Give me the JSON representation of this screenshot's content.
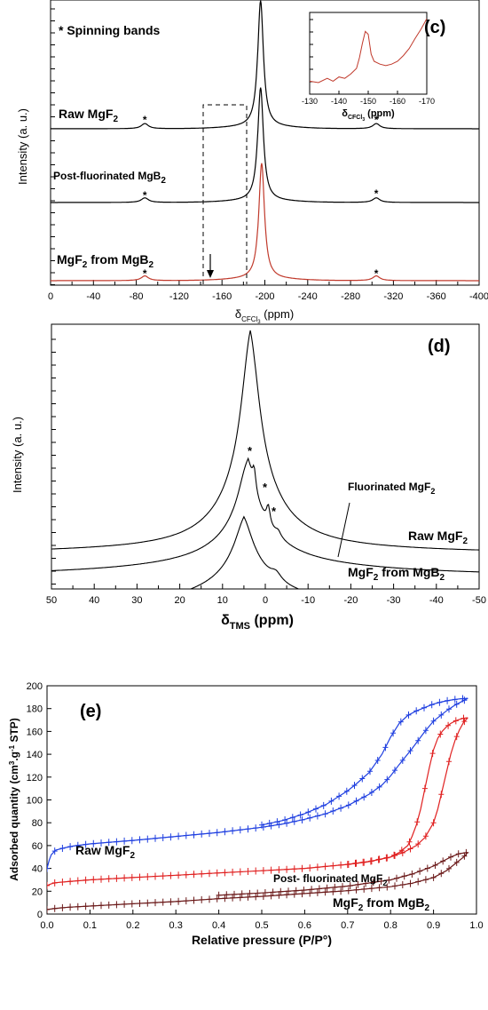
{
  "chart_data": [
    {
      "panel_label": "(c)",
      "type": "line",
      "xlabel": "δCFCl3 (ppm)",
      "ylabel": "Intensity (a. u.)",
      "xlim": [
        0,
        -400
      ],
      "xticks": [
        0,
        -40,
        -80,
        -120,
        -160,
        -200,
        -240,
        -280,
        -320,
        -360,
        -400
      ],
      "note": "* Spinning bands",
      "spinning_band_marker": "*",
      "series": [
        {
          "name": "Raw MgF2",
          "color": "#000000",
          "peaks": [
            {
              "x": -196,
              "rel_height": 1.0
            }
          ],
          "spinning_bands": [
            -88,
            -304
          ]
        },
        {
          "name": "Post-fluorinated MgB2",
          "color": "#000000",
          "peaks": [
            {
              "x": -196,
              "rel_height": 1.0
            }
          ],
          "spinning_bands": [
            -88,
            -304
          ]
        },
        {
          "name": "MgF2 from MgB2",
          "color": "#c0392b",
          "peaks": [
            {
              "x": -197,
              "rel_height": 1.0
            }
          ],
          "spinning_bands": [
            -88,
            -304
          ]
        }
      ],
      "inset": {
        "xlabel": "δCFCl3 (ppm)",
        "xlim": [
          -130,
          -170
        ],
        "xticks": [
          -130,
          -140,
          -150,
          -160,
          -170
        ],
        "color": "#c0392b",
        "x": [
          -130,
          -133,
          -136,
          -138,
          -140,
          -142,
          -144,
          -146,
          -147,
          -148,
          -149,
          -150,
          -151,
          -152,
          -154,
          -156,
          -158,
          -160,
          -162,
          -164,
          -166,
          -168,
          -170
        ],
        "y": [
          0.12,
          0.1,
          0.16,
          0.12,
          0.18,
          0.16,
          0.22,
          0.3,
          0.45,
          0.65,
          0.82,
          0.78,
          0.5,
          0.4,
          0.36,
          0.34,
          0.36,
          0.4,
          0.48,
          0.58,
          0.72,
          0.85,
          1.0
        ]
      }
    },
    {
      "panel_label": "(d)",
      "type": "line",
      "xlabel": "δTMS (ppm)",
      "ylabel": "Intensity (a. u.)",
      "xlim": [
        50,
        -50
      ],
      "xticks": [
        50,
        40,
        30,
        20,
        10,
        0,
        -10,
        -20,
        -30,
        -40,
        -50
      ],
      "spinning_band_marker": "*",
      "series": [
        {
          "name": "Raw MgF2",
          "color": "#000000",
          "peak_x": 3.5,
          "rel_height": 1.0
        },
        {
          "name": "Fluorinated MgF2",
          "color": "#000000",
          "peak_x": 4.0,
          "rel_height": 0.55
        },
        {
          "name": "MgF2 from MgB2",
          "color": "#000000",
          "peak_x": 5.0,
          "rel_height": 0.45
        }
      ]
    },
    {
      "panel_label": "(e)",
      "type": "line",
      "xlabel": "Relative pressure (P/P°)",
      "ylabel": "Adsorbed quantity (cm3.g-1 STP)",
      "xlim": [
        0.0,
        1.0
      ],
      "ylim": [
        0,
        200
      ],
      "xticks": [
        0.0,
        0.1,
        0.2,
        0.3,
        0.4,
        0.5,
        0.6,
        0.7,
        0.8,
        0.9,
        1.0
      ],
      "yticks": [
        0,
        20,
        40,
        60,
        80,
        100,
        120,
        140,
        160,
        180,
        200
      ],
      "series": [
        {
          "name": "Raw MgF2",
          "color": "#1f3fe0",
          "adsorption_x": [
            0.0,
            0.005,
            0.01,
            0.02,
            0.04,
            0.06,
            0.1,
            0.15,
            0.2,
            0.3,
            0.4,
            0.5,
            0.55,
            0.6,
            0.65,
            0.7,
            0.75,
            0.78,
            0.8,
            0.82,
            0.85,
            0.88,
            0.9,
            0.93,
            0.95,
            0.97,
            0.98
          ],
          "adsorption_y": [
            40,
            47,
            52,
            56,
            58,
            59.5,
            61.5,
            63,
            64.5,
            68,
            71.5,
            76,
            79,
            83,
            88,
            95,
            105,
            113,
            121,
            131,
            145,
            160,
            169,
            178,
            183,
            187,
            189
          ],
          "desorption_x": [
            0.98,
            0.96,
            0.94,
            0.92,
            0.9,
            0.88,
            0.86,
            0.84,
            0.82,
            0.8,
            0.78,
            0.75,
            0.72,
            0.7,
            0.65,
            0.6,
            0.55,
            0.5
          ],
          "desorption_y": [
            189,
            188.5,
            187.5,
            186,
            184,
            181,
            178,
            174,
            167,
            155,
            140,
            124,
            114,
            108,
            96,
            88,
            82,
            78
          ]
        },
        {
          "name": "Post- fluorinated MgF2",
          "color": "#e02020",
          "adsorption_x": [
            0.0,
            0.01,
            0.02,
            0.05,
            0.1,
            0.2,
            0.3,
            0.4,
            0.5,
            0.6,
            0.7,
            0.75,
            0.8,
            0.83,
            0.86,
            0.88,
            0.9,
            0.91,
            0.92,
            0.93,
            0.94,
            0.95,
            0.96,
            0.97,
            0.98
          ],
          "adsorption_y": [
            25,
            26.5,
            27.5,
            28.5,
            30,
            32,
            34,
            36,
            38,
            40,
            43.5,
            46,
            50,
            54,
            60,
            67,
            80,
            92,
            108,
            124,
            140,
            152,
            161,
            168,
            172
          ],
          "desorption_x": [
            0.98,
            0.97,
            0.96,
            0.95,
            0.94,
            0.93,
            0.92,
            0.91,
            0.9,
            0.89,
            0.88,
            0.87,
            0.86,
            0.85,
            0.84,
            0.82,
            0.8,
            0.75,
            0.7
          ],
          "desorption_y": [
            172,
            171.5,
            170.5,
            169,
            167,
            164,
            160,
            154,
            144,
            128,
            110,
            92,
            78,
            68,
            60,
            54,
            50,
            46,
            43.5
          ]
        },
        {
          "name": "MgF2 from MgB2",
          "color": "#6b1a1a",
          "adsorption_x": [
            0.0,
            0.02,
            0.05,
            0.1,
            0.2,
            0.3,
            0.4,
            0.5,
            0.6,
            0.7,
            0.8,
            0.85,
            0.9,
            0.93,
            0.95,
            0.97,
            0.98
          ],
          "adsorption_y": [
            4,
            5,
            6,
            7,
            9,
            11,
            13.5,
            15.5,
            18,
            20.5,
            24,
            27,
            32,
            38,
            44,
            50,
            54
          ],
          "desorption_x": [
            0.98,
            0.96,
            0.94,
            0.92,
            0.9,
            0.85,
            0.8,
            0.7,
            0.6,
            0.5,
            0.4
          ],
          "desorption_y": [
            54,
            53,
            50,
            46,
            42,
            35,
            30,
            24.5,
            21,
            18.5,
            16.5
          ]
        }
      ]
    }
  ]
}
